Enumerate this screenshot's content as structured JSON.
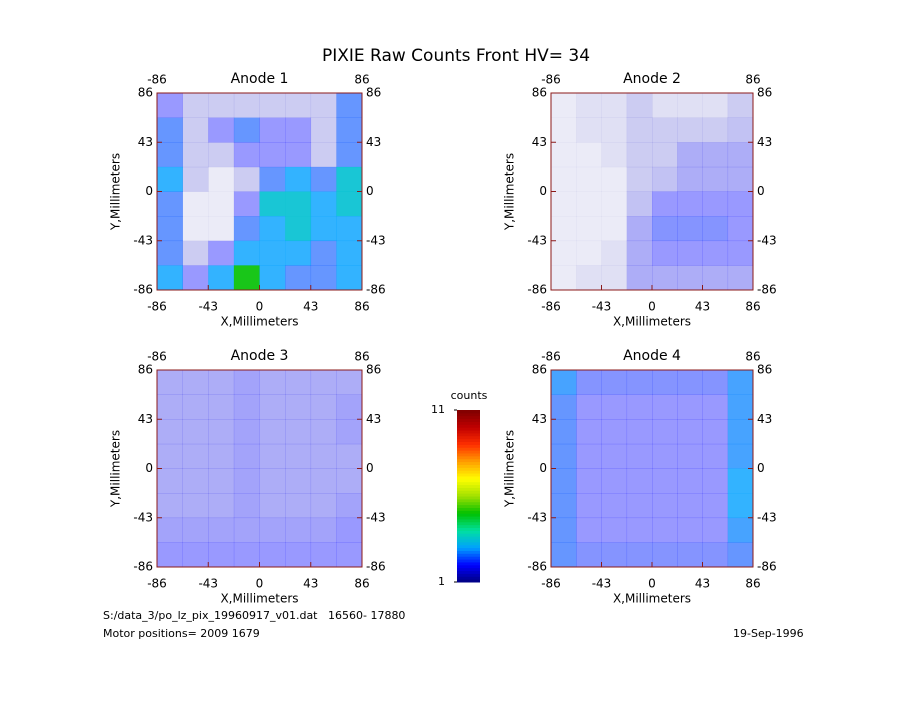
{
  "title": "PIXIE Raw Counts Front HV= 34",
  "chart_data": [
    {
      "type": "heatmap",
      "title": "Anode 1",
      "xlabel": "X,Millimeters",
      "ylabel": "Y,Millimeters",
      "xlim": [
        -86,
        86
      ],
      "ylim": [
        -86,
        86
      ],
      "y2lim": [
        -86,
        86
      ],
      "xticks": [
        -86,
        -43,
        0,
        43,
        86
      ],
      "x2ticks": [
        -86,
        86
      ],
      "yticks": [
        -86,
        -43,
        0,
        43,
        86
      ],
      "y2ticks": [
        -86,
        -43,
        0,
        43,
        86
      ],
      "values": [
        [
          2,
          1.5,
          1.5,
          1.5,
          1.5,
          1.5,
          1.5,
          2.5
        ],
        [
          2.5,
          1.5,
          2,
          2.5,
          2,
          2,
          1.5,
          2.5
        ],
        [
          2.5,
          1.5,
          1.5,
          2,
          2,
          2,
          1.5,
          2.5
        ],
        [
          3,
          1.5,
          1.2,
          1.5,
          2.5,
          3,
          2.5,
          3.5
        ],
        [
          2.5,
          1.2,
          1.2,
          2,
          3.5,
          3.5,
          3,
          3.5
        ],
        [
          2.5,
          1.2,
          1.2,
          2.5,
          3,
          3.5,
          3,
          3
        ],
        [
          2.5,
          1.5,
          2,
          3,
          3,
          3,
          2.5,
          3
        ],
        [
          3,
          2,
          3,
          5,
          3,
          2.5,
          2.5,
          3
        ]
      ]
    },
    {
      "type": "heatmap",
      "title": "Anode 2",
      "xlabel": "X,Millimeters",
      "ylabel": "Y,Millimeters",
      "xlim": [
        -86,
        86
      ],
      "ylim": [
        -86,
        86
      ],
      "y2lim": [
        -86,
        86
      ],
      "xticks": [
        -86,
        -43,
        0,
        43,
        86
      ],
      "x2ticks": [
        -86,
        86
      ],
      "yticks": [
        -86,
        -43,
        0,
        43,
        86
      ],
      "y2ticks": [
        -86,
        -43,
        0,
        43,
        86
      ],
      "values": [
        [
          1.2,
          1.3,
          1.3,
          1.5,
          1.3,
          1.3,
          1.3,
          1.5
        ],
        [
          1.2,
          1.3,
          1.3,
          1.5,
          1.5,
          1.5,
          1.5,
          1.6
        ],
        [
          1.2,
          1.2,
          1.3,
          1.5,
          1.5,
          1.8,
          1.8,
          1.8
        ],
        [
          1.2,
          1.2,
          1.2,
          1.5,
          1.6,
          1.8,
          1.8,
          1.8
        ],
        [
          1.2,
          1.2,
          1.2,
          1.6,
          2,
          2,
          2,
          2
        ],
        [
          1.2,
          1.2,
          1.2,
          1.8,
          2.2,
          2.2,
          2.2,
          2
        ],
        [
          1.2,
          1.2,
          1.3,
          1.8,
          2,
          2,
          2,
          2
        ],
        [
          1.2,
          1.3,
          1.3,
          1.8,
          1.8,
          1.8,
          1.8,
          1.8
        ]
      ]
    },
    {
      "type": "heatmap",
      "title": "Anode 3",
      "xlabel": "X,Millimeters",
      "ylabel": "Y,Millimeters",
      "xlim": [
        -86,
        86
      ],
      "ylim": [
        -86,
        86
      ],
      "y2lim": [
        -86,
        86
      ],
      "xticks": [
        -86,
        -43,
        0,
        43,
        86
      ],
      "x2ticks": [
        -86,
        86
      ],
      "yticks": [
        -86,
        -43,
        0,
        43,
        86
      ],
      "y2ticks": [
        -86,
        -43,
        0,
        43,
        86
      ],
      "values": [
        [
          1.8,
          1.8,
          1.8,
          1.9,
          1.8,
          1.8,
          1.8,
          1.8
        ],
        [
          1.8,
          1.8,
          1.8,
          1.9,
          1.8,
          1.8,
          1.8,
          1.9
        ],
        [
          1.8,
          1.8,
          1.8,
          1.9,
          1.8,
          1.8,
          1.8,
          1.9
        ],
        [
          1.8,
          1.8,
          1.8,
          1.9,
          1.8,
          1.8,
          1.8,
          1.8
        ],
        [
          1.8,
          1.8,
          1.8,
          1.9,
          1.8,
          1.8,
          1.8,
          1.8
        ],
        [
          1.8,
          1.8,
          1.8,
          1.9,
          1.8,
          1.8,
          1.8,
          1.9
        ],
        [
          1.9,
          1.9,
          1.9,
          1.9,
          1.9,
          1.9,
          1.9,
          2
        ],
        [
          2,
          2,
          2,
          2,
          2,
          2,
          2,
          2
        ]
      ]
    },
    {
      "type": "heatmap",
      "title": "Anode 4",
      "xlabel": "X,Millimeters",
      "ylabel": "Y,Millimeters",
      "xlim": [
        -86,
        86
      ],
      "ylim": [
        -86,
        86
      ],
      "y2lim": [
        -86,
        86
      ],
      "xticks": [
        -86,
        -43,
        0,
        43,
        86
      ],
      "x2ticks": [
        -86,
        86
      ],
      "yticks": [
        -86,
        -43,
        0,
        43,
        86
      ],
      "y2ticks": [
        -86,
        -43,
        0,
        43,
        86
      ],
      "values": [
        [
          2.8,
          2.2,
          2.2,
          2.2,
          2.2,
          2.2,
          2.2,
          2.8
        ],
        [
          2.5,
          2,
          2,
          2,
          2,
          2,
          2,
          2.8
        ],
        [
          2.5,
          2,
          2,
          2,
          2,
          2,
          2,
          2.8
        ],
        [
          2.5,
          2,
          2,
          2,
          2,
          2,
          2,
          2.8
        ],
        [
          2.5,
          2,
          2,
          2,
          2,
          2,
          2,
          3
        ],
        [
          2.5,
          2,
          2,
          2,
          2,
          2,
          2,
          3
        ],
        [
          2.5,
          2,
          2,
          2,
          2,
          2,
          2,
          2.8
        ],
        [
          2.5,
          2.2,
          2.2,
          2.2,
          2.2,
          2.2,
          2.2,
          2.5
        ]
      ]
    }
  ],
  "colorbar": {
    "label": "counts",
    "lim": [
      1,
      11
    ],
    "ticks": [
      1,
      11
    ],
    "colors": [
      "#00007f",
      "#0000ff",
      "#00a0ff",
      "#00e0a0",
      "#00c000",
      "#a0e000",
      "#ffff00",
      "#ffa000",
      "#ff3000",
      "#c00000",
      "#7f0000"
    ]
  },
  "footer": {
    "file": "S:/data_3/po_lz_pix_19960917_v01.dat   16560- 17880",
    "motor": "Motor positions= 2009 1679",
    "date": "19-Sep-1996"
  }
}
